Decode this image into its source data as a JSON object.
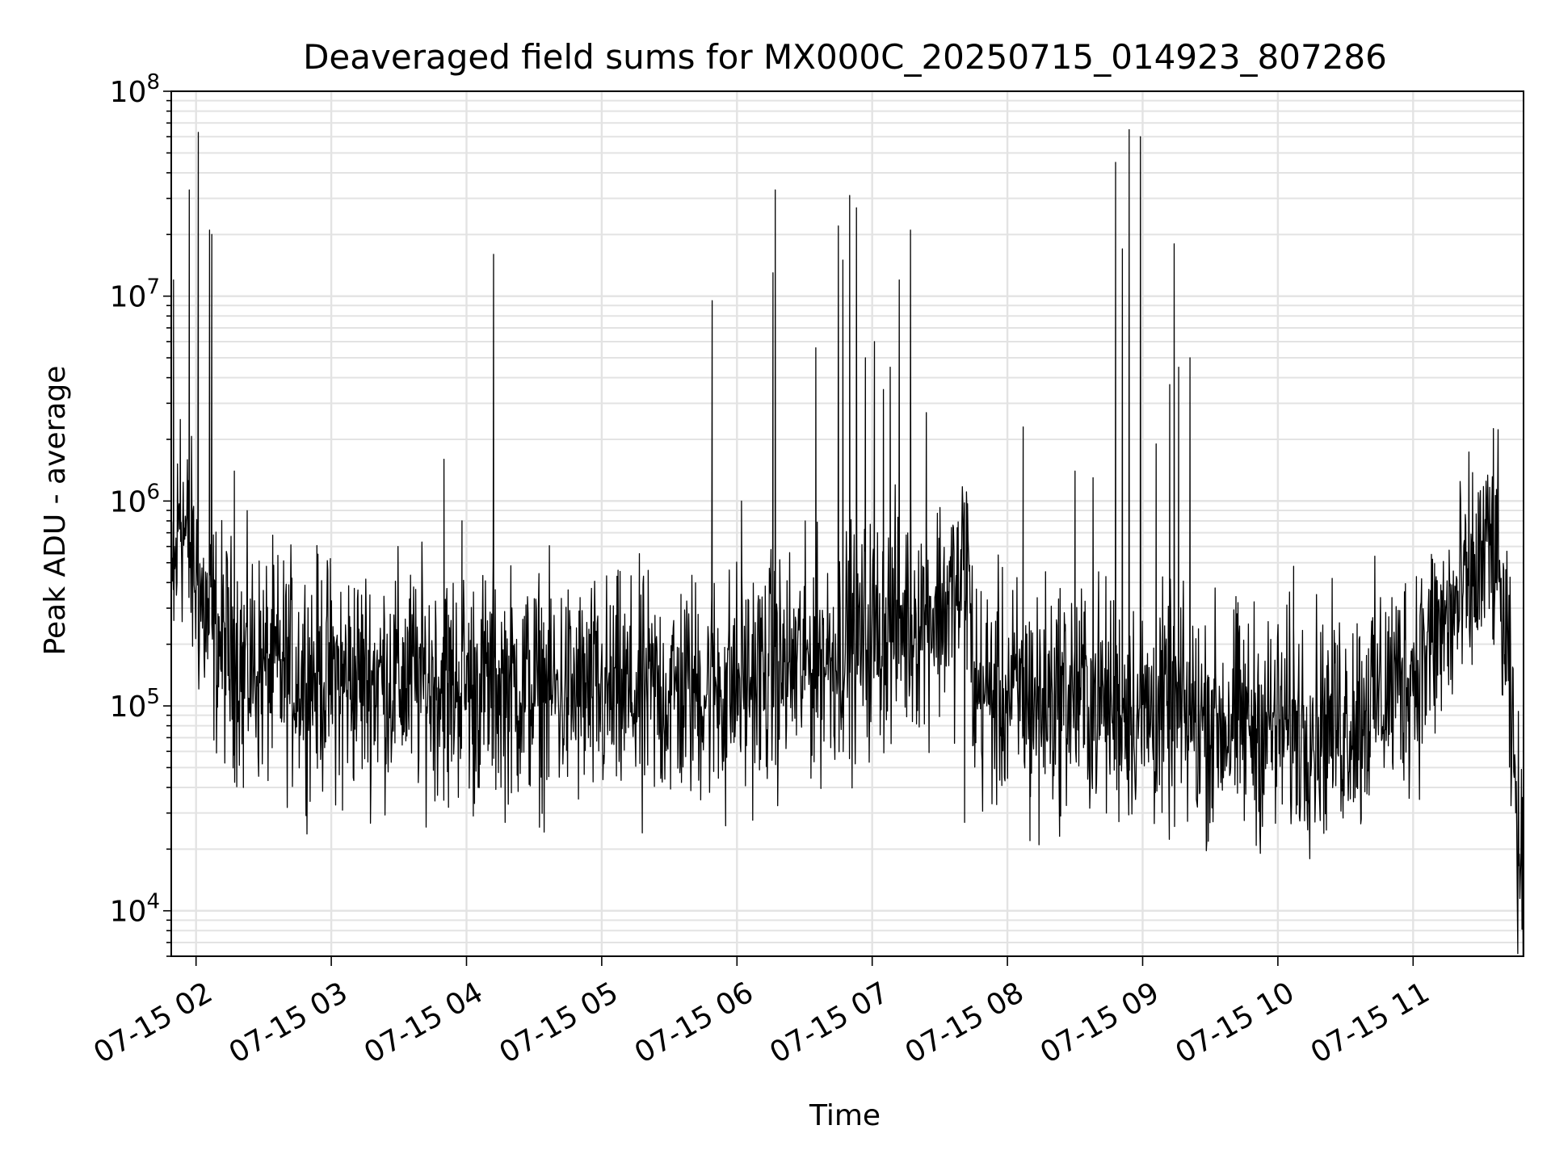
{
  "chart_data": {
    "type": "line",
    "title": "Deaveraged field sums for MX000C_20250715_014923_807286",
    "xlabel": "Time",
    "ylabel": "Peak ADU - average",
    "yscale": "log",
    "ylim": [
      6000,
      100000000
    ],
    "xlim": [
      "2025-07-15 01:49",
      "2025-07-15 11:49"
    ],
    "grid": true,
    "line_color": "#000000",
    "x_ticks": [
      {
        "value": "2025-07-15 02:00",
        "label": "07-15 02"
      },
      {
        "value": "2025-07-15 03:00",
        "label": "07-15 03"
      },
      {
        "value": "2025-07-15 04:00",
        "label": "07-15 04"
      },
      {
        "value": "2025-07-15 05:00",
        "label": "07-15 05"
      },
      {
        "value": "2025-07-15 06:00",
        "label": "07-15 06"
      },
      {
        "value": "2025-07-15 07:00",
        "label": "07-15 07"
      },
      {
        "value": "2025-07-15 08:00",
        "label": "07-15 08"
      },
      {
        "value": "2025-07-15 09:00",
        "label": "07-15 09"
      },
      {
        "value": "2025-07-15 10:00",
        "label": "07-15 10"
      },
      {
        "value": "2025-07-15 11:00",
        "label": "07-15 11"
      }
    ],
    "y_ticks": [
      {
        "value": 10000,
        "base": "10",
        "exp": "4"
      },
      {
        "value": 100000,
        "base": "10",
        "exp": "5"
      },
      {
        "value": 1000000,
        "base": "10",
        "exp": "6"
      },
      {
        "value": 10000000,
        "base": "10",
        "exp": "7"
      },
      {
        "value": 100000000,
        "base": "10",
        "exp": "8"
      }
    ],
    "series": [
      {
        "baseline": [
          [
            "2025-07-15 01:49",
            250000
          ],
          [
            "2025-07-15 01:53",
            950000
          ],
          [
            "2025-07-15 01:56",
            600000
          ],
          [
            "2025-07-15 02:00",
            420000
          ],
          [
            "2025-07-15 02:05",
            250000
          ],
          [
            "2025-07-15 02:15",
            180000
          ],
          [
            "2025-07-15 02:30",
            150000
          ],
          [
            "2025-07-15 03:00",
            140000
          ],
          [
            "2025-07-15 03:30",
            135000
          ],
          [
            "2025-07-15 04:00",
            130000
          ],
          [
            "2025-07-15 04:30",
            120000
          ],
          [
            "2025-07-15 05:00",
            110000
          ],
          [
            "2025-07-15 05:30",
            115000
          ],
          [
            "2025-07-15 06:00",
            130000
          ],
          [
            "2025-07-15 06:30",
            160000
          ],
          [
            "2025-07-15 07:00",
            220000
          ],
          [
            "2025-07-15 07:20",
            280000
          ],
          [
            "2025-07-15 07:38",
            330000
          ],
          [
            "2025-07-15 07:42",
            600000
          ],
          [
            "2025-07-15 07:45",
            120000
          ],
          [
            "2025-07-15 08:00",
            110000
          ],
          [
            "2025-07-15 08:30",
            115000
          ],
          [
            "2025-07-15 09:00",
            95000
          ],
          [
            "2025-07-15 09:30",
            85000
          ],
          [
            "2025-07-15 10:00",
            80000
          ],
          [
            "2025-07-15 10:30",
            85000
          ],
          [
            "2025-07-15 11:00",
            150000
          ],
          [
            "2025-07-15 11:20",
            300000
          ],
          [
            "2025-07-15 11:36",
            650000
          ],
          [
            "2025-07-15 11:42",
            150000
          ],
          [
            "2025-07-15 11:49",
            9000
          ]
        ],
        "spikes": [
          [
            "2025-07-15 01:50",
            12000000
          ],
          [
            "2025-07-15 01:53",
            2500000
          ],
          [
            "2025-07-15 01:57",
            33000000
          ],
          [
            "2025-07-15 02:01",
            63000000
          ],
          [
            "2025-07-15 02:06",
            21000000
          ],
          [
            "2025-07-15 02:07",
            20000000
          ],
          [
            "2025-07-15 02:17",
            1400000
          ],
          [
            "2025-07-15 03:50",
            1600000
          ],
          [
            "2025-07-15 03:58",
            800000
          ],
          [
            "2025-07-15 04:12",
            16000000
          ],
          [
            "2025-07-15 05:49",
            9500000
          ],
          [
            "2025-07-15 06:02",
            1000000
          ],
          [
            "2025-07-15 06:16",
            13000000
          ],
          [
            "2025-07-15 06:17",
            33000000
          ],
          [
            "2025-07-15 06:35",
            5600000
          ],
          [
            "2025-07-15 06:45",
            22000000
          ],
          [
            "2025-07-15 06:47",
            15000000
          ],
          [
            "2025-07-15 06:50",
            31000000
          ],
          [
            "2025-07-15 06:53",
            27000000
          ],
          [
            "2025-07-15 06:57",
            5000000
          ],
          [
            "2025-07-15 07:01",
            6000000
          ],
          [
            "2025-07-15 07:05",
            3500000
          ],
          [
            "2025-07-15 07:08",
            4500000
          ],
          [
            "2025-07-15 07:12",
            12000000
          ],
          [
            "2025-07-15 07:17",
            21000000
          ],
          [
            "2025-07-15 07:24",
            2700000
          ],
          [
            "2025-07-15 07:42",
            900000
          ],
          [
            "2025-07-15 08:07",
            2300000
          ],
          [
            "2025-07-15 08:30",
            1400000
          ],
          [
            "2025-07-15 08:38",
            1300000
          ],
          [
            "2025-07-15 08:48",
            45000000
          ],
          [
            "2025-07-15 08:51",
            17000000
          ],
          [
            "2025-07-15 08:54",
            65000000
          ],
          [
            "2025-07-15 08:59",
            60000000
          ],
          [
            "2025-07-15 09:06",
            1900000
          ],
          [
            "2025-07-15 09:12",
            3700000
          ],
          [
            "2025-07-15 09:14",
            18000000
          ],
          [
            "2025-07-15 09:16",
            4500000
          ],
          [
            "2025-07-15 09:21",
            5000000
          ],
          [
            "2025-07-15 10:07",
            480000
          ],
          [
            "2025-07-15 11:28",
            700000
          ]
        ],
        "dips": [
          [
            "2025-07-15 02:21",
            40000
          ],
          [
            "2025-07-15 03:05",
            31000
          ],
          [
            "2025-07-15 03:52",
            32000
          ],
          [
            "2025-07-15 04:03",
            29000
          ],
          [
            "2025-07-15 05:18",
            24000
          ],
          [
            "2025-07-15 05:55",
            26000
          ],
          [
            "2025-07-15 07:41",
            27000
          ],
          [
            "2025-07-15 08:10",
            22000
          ],
          [
            "2025-07-15 08:14",
            21000
          ],
          [
            "2025-07-15 10:37",
            28000
          ]
        ]
      }
    ]
  }
}
